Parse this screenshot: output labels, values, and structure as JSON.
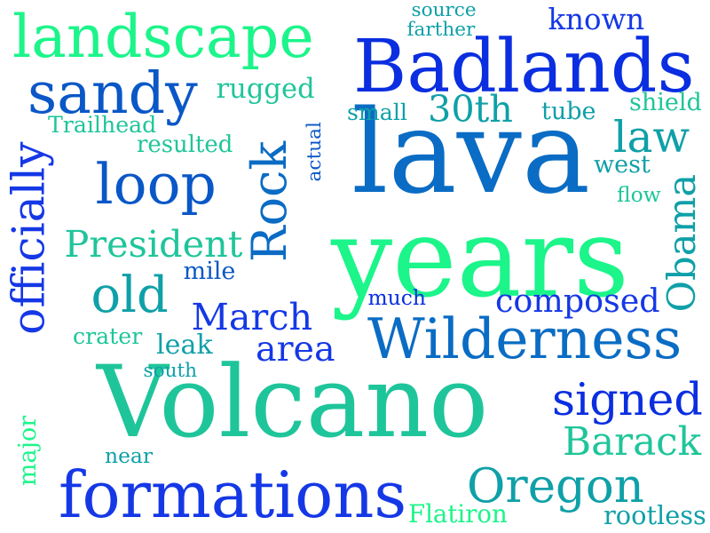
{
  "word_cloud": {
    "words": [
      {
        "text": "Volcano",
        "color": "#1fc59a"
      },
      {
        "text": "lava",
        "color": "#0a6cc4"
      },
      {
        "text": "years",
        "color": "#1bf58a"
      },
      {
        "text": "Badlands",
        "color": "#0a2ee0"
      },
      {
        "text": "formations",
        "color": "#1538e6"
      },
      {
        "text": "Wilderness",
        "color": "#0a6cc4"
      },
      {
        "text": "landscape",
        "color": "#1bf58a"
      },
      {
        "text": "Rock",
        "color": "#0a6cc4"
      },
      {
        "text": "sandy",
        "color": "#0a57c7"
      },
      {
        "text": "loop",
        "color": "#0a57c7"
      },
      {
        "text": "officially",
        "color": "#1538e6"
      },
      {
        "text": "Oregon",
        "color": "#0fa0a8"
      },
      {
        "text": "signed",
        "color": "#0a2ee0"
      },
      {
        "text": "old",
        "color": "#0fa0a8"
      },
      {
        "text": "Barack",
        "color": "#1fc59a"
      },
      {
        "text": "law",
        "color": "#0fa0a8"
      },
      {
        "text": "Obama",
        "color": "#0fa0a8"
      },
      {
        "text": "President",
        "color": "#1fc59a"
      },
      {
        "text": "March",
        "color": "#1538e6"
      },
      {
        "text": "area",
        "color": "#1538e6"
      },
      {
        "text": "30th",
        "color": "#0fa0a8"
      },
      {
        "text": "composed",
        "color": "#1538e6"
      },
      {
        "text": "known",
        "color": "#1538e6"
      },
      {
        "text": "resulted",
        "color": "#1fc59a"
      },
      {
        "text": "rugged",
        "color": "#1fc59a"
      },
      {
        "text": "Flatiron",
        "color": "#1bf58a"
      },
      {
        "text": "rootless",
        "color": "#0fa0a8"
      },
      {
        "text": "major",
        "color": "#1bf58a"
      },
      {
        "text": "source",
        "color": "#0fa0a8"
      },
      {
        "text": "farther",
        "color": "#0fa0a8"
      },
      {
        "text": "small",
        "color": "#0fa0a8"
      },
      {
        "text": "tube",
        "color": "#0fa0a8"
      },
      {
        "text": "shield",
        "color": "#1fc59a"
      },
      {
        "text": "west",
        "color": "#0fa0a8"
      },
      {
        "text": "flow",
        "color": "#1fc59a"
      },
      {
        "text": "Trailhead",
        "color": "#1fc59a"
      },
      {
        "text": "actual",
        "color": "#0a57c7"
      },
      {
        "text": "mile",
        "color": "#0a57c7"
      },
      {
        "text": "much",
        "color": "#0a2ee0"
      },
      {
        "text": "crater",
        "color": "#1fc59a"
      },
      {
        "text": "leak",
        "color": "#0fa0a8"
      },
      {
        "text": "south",
        "color": "#0fa0a8"
      },
      {
        "text": "near",
        "color": "#0fa0a8"
      }
    ]
  }
}
